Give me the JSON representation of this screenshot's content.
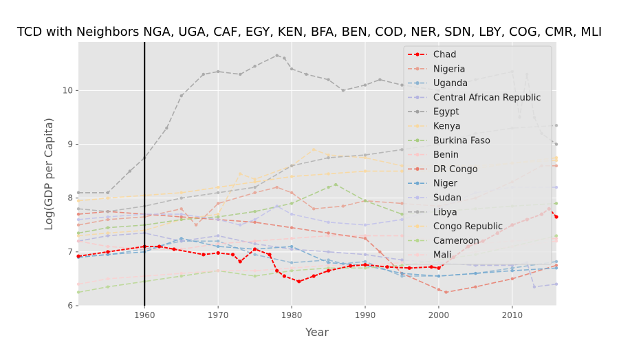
{
  "chart_data": {
    "type": "line",
    "title": "TCD with Neighbors NGA, UGA, CAF, EGY, KEN, BFA, BEN, COD, NER, SDN, LBY, COG, CMR, MLI",
    "xlabel": "Year",
    "ylabel": "Log(GDP per Capita)",
    "xlim": [
      1951,
      2016
    ],
    "ylim": [
      6,
      10.9
    ],
    "xticks": [
      1960,
      1970,
      1980,
      1990,
      2000,
      2010
    ],
    "yticks": [
      6,
      7,
      8,
      9,
      10
    ],
    "grid": true,
    "legend_position": "top-right",
    "vline_x": 1960,
    "background": "#e5e5e5",
    "series": [
      {
        "name": "Chad",
        "color": "#ff0000",
        "emphasis": true,
        "x": [
          1951,
          1955,
          1960,
          1962,
          1964,
          1968,
          1970,
          1972,
          1973,
          1975,
          1977,
          1978,
          1979,
          1981,
          1983,
          1985,
          1988,
          1990,
          1993,
          1996,
          1999,
          2000,
          2002,
          2004,
          2006,
          2008,
          2010,
          2012,
          2014,
          2015,
          2016
        ],
        "y": [
          6.92,
          7.0,
          7.1,
          7.1,
          7.05,
          6.95,
          6.98,
          6.95,
          6.82,
          7.05,
          6.95,
          6.65,
          6.55,
          6.45,
          6.55,
          6.65,
          6.74,
          6.76,
          6.72,
          6.7,
          6.72,
          6.7,
          6.9,
          7.1,
          7.2,
          7.35,
          7.5,
          7.6,
          7.7,
          7.8,
          7.65
        ]
      },
      {
        "name": "Nigeria",
        "color": "#e8a090",
        "x": [
          1951,
          1955,
          1960,
          1965,
          1967,
          1970,
          1975,
          1978,
          1980,
          1983,
          1987,
          1990,
          1995,
          2000,
          2005,
          2010,
          2014,
          2016
        ],
        "y": [
          7.5,
          7.6,
          7.65,
          7.8,
          7.5,
          7.9,
          8.1,
          8.2,
          8.1,
          7.8,
          7.85,
          7.95,
          7.9,
          7.85,
          8.0,
          8.3,
          8.6,
          8.6
        ]
      },
      {
        "name": "Uganda",
        "color": "#8cb4d2",
        "x": [
          1951,
          1955,
          1960,
          1965,
          1970,
          1975,
          1980,
          1985,
          1987,
          1990,
          1995,
          2000,
          2005,
          2010,
          2016
        ],
        "y": [
          6.9,
          6.95,
          7.05,
          7.2,
          7.2,
          6.95,
          6.8,
          6.85,
          6.78,
          6.82,
          6.55,
          6.55,
          6.6,
          6.7,
          6.82
        ]
      },
      {
        "name": "Central African Republic",
        "color": "#b4b4e0",
        "x": [
          1951,
          1955,
          1960,
          1965,
          1970,
          1975,
          1980,
          1985,
          1990,
          1995,
          2000,
          2005,
          2010,
          2012,
          2013,
          2016
        ],
        "y": [
          7.2,
          7.3,
          7.35,
          7.2,
          7.3,
          7.15,
          7.05,
          7.0,
          6.95,
          6.85,
          6.8,
          6.75,
          6.75,
          6.8,
          6.35,
          6.4
        ]
      },
      {
        "name": "Egypt",
        "color": "#a0a0a0",
        "x": [
          1951,
          1955,
          1958,
          1960,
          1963,
          1965,
          1968,
          1970,
          1973,
          1975,
          1978,
          1979,
          1980,
          1982,
          1985,
          1987,
          1990,
          1992,
          1995,
          2000,
          2005,
          2010,
          2011,
          2012,
          2013,
          2014,
          2016
        ],
        "y": [
          8.1,
          8.1,
          8.5,
          8.75,
          9.3,
          9.9,
          10.3,
          10.35,
          10.3,
          10.45,
          10.65,
          10.6,
          10.4,
          10.3,
          10.2,
          10.0,
          10.1,
          10.2,
          10.1,
          10.0,
          10.2,
          10.35,
          9.5,
          10.3,
          9.5,
          9.2,
          9.0
        ]
      },
      {
        "name": "Kenya",
        "color": "#f8d8a0",
        "x": [
          1951,
          1955,
          1960,
          1965,
          1970,
          1973,
          1975,
          1980,
          1983,
          1985,
          1990,
          1995,
          2000,
          2005,
          2010,
          2016
        ],
        "y": [
          7.3,
          7.35,
          7.4,
          7.6,
          7.7,
          8.45,
          8.35,
          8.6,
          8.9,
          8.8,
          8.75,
          8.6,
          8.6,
          8.6,
          8.65,
          8.7
        ]
      },
      {
        "name": "Burkina Faso",
        "color": "#a8cc80",
        "x": [
          1951,
          1955,
          1960,
          1965,
          1970,
          1975,
          1980,
          1985,
          1986,
          1990,
          1995,
          2000,
          2005,
          2010,
          2016
        ],
        "y": [
          7.35,
          7.45,
          7.5,
          7.6,
          7.65,
          7.75,
          7.9,
          8.2,
          8.25,
          7.95,
          7.7,
          7.75,
          7.8,
          7.85,
          7.9
        ]
      },
      {
        "name": "Benin",
        "color": "#fcc8c8",
        "x": [
          1951,
          1955,
          1960,
          1965,
          1970,
          1975,
          1980,
          1985,
          1990,
          1995,
          2000,
          2005,
          2010,
          2016
        ],
        "y": [
          7.2,
          7.1,
          7.05,
          7.05,
          7.15,
          7.2,
          7.25,
          7.3,
          7.3,
          7.3,
          7.2,
          7.15,
          7.2,
          7.25
        ]
      },
      {
        "name": "DR Congo",
        "color": "#e87c6c",
        "x": [
          1951,
          1955,
          1960,
          1965,
          1970,
          1975,
          1980,
          1985,
          1990,
          1992,
          1995,
          2000,
          2001,
          2005,
          2010,
          2016
        ],
        "y": [
          7.7,
          7.75,
          7.7,
          7.65,
          7.6,
          7.55,
          7.45,
          7.35,
          7.25,
          7.0,
          6.6,
          6.3,
          6.25,
          6.35,
          6.5,
          6.75
        ]
      },
      {
        "name": "Niger",
        "color": "#70a8d0",
        "x": [
          1951,
          1955,
          1960,
          1965,
          1970,
          1975,
          1980,
          1985,
          1990,
          1995,
          2000,
          2005,
          2010,
          2016
        ],
        "y": [
          6.9,
          6.95,
          7.0,
          7.25,
          7.1,
          7.05,
          7.1,
          6.8,
          6.75,
          6.6,
          6.55,
          6.6,
          6.65,
          6.7
        ]
      },
      {
        "name": "Sudan",
        "color": "#c0c0ec",
        "x": [
          1951,
          1955,
          1960,
          1965,
          1970,
          1973,
          1975,
          1978,
          1980,
          1985,
          1990,
          1995,
          2000,
          2005,
          2010,
          2016
        ],
        "y": [
          7.6,
          7.65,
          7.7,
          7.7,
          7.6,
          7.5,
          7.6,
          7.85,
          7.7,
          7.55,
          7.5,
          7.6,
          7.8,
          8.1,
          8.2,
          8.2
        ]
      },
      {
        "name": "Libya",
        "color": "#b0b0b0",
        "x": [
          1951,
          1955,
          1960,
          1965,
          1970,
          1975,
          1980,
          1985,
          1990,
          1995,
          2000,
          2005,
          2010,
          2016
        ],
        "y": [
          7.8,
          7.75,
          7.85,
          8.0,
          8.1,
          8.2,
          8.6,
          8.75,
          8.8,
          8.9,
          9.0,
          9.2,
          9.3,
          9.35
        ]
      },
      {
        "name": "Congo Republic",
        "color": "#fcd898",
        "x": [
          1951,
          1955,
          1960,
          1965,
          1970,
          1975,
          1980,
          1985,
          1990,
          1995,
          2000,
          2005,
          2010,
          2016
        ],
        "y": [
          7.95,
          8.0,
          8.05,
          8.1,
          8.2,
          8.3,
          8.4,
          8.45,
          8.5,
          8.5,
          8.5,
          8.55,
          8.65,
          8.75
        ]
      },
      {
        "name": "Cameroon",
        "color": "#b8d890",
        "x": [
          1951,
          1955,
          1960,
          1965,
          1970,
          1975,
          1980,
          1985,
          1990,
          1995,
          2000,
          2005,
          2010,
          2016
        ],
        "y": [
          6.25,
          6.35,
          6.45,
          6.55,
          6.65,
          6.55,
          6.65,
          6.7,
          6.7,
          6.75,
          6.85,
          6.95,
          7.1,
          7.3
        ]
      },
      {
        "name": "Mali",
        "color": "#fcd0d0",
        "x": [
          1951,
          1955,
          1960,
          1965,
          1970,
          1975,
          1980,
          1985,
          1990,
          1995,
          2000,
          2005,
          2010,
          2016
        ],
        "y": [
          6.4,
          6.5,
          6.55,
          6.6,
          6.65,
          6.65,
          6.7,
          6.75,
          6.75,
          6.8,
          6.9,
          7.0,
          7.1,
          7.2
        ]
      }
    ]
  }
}
